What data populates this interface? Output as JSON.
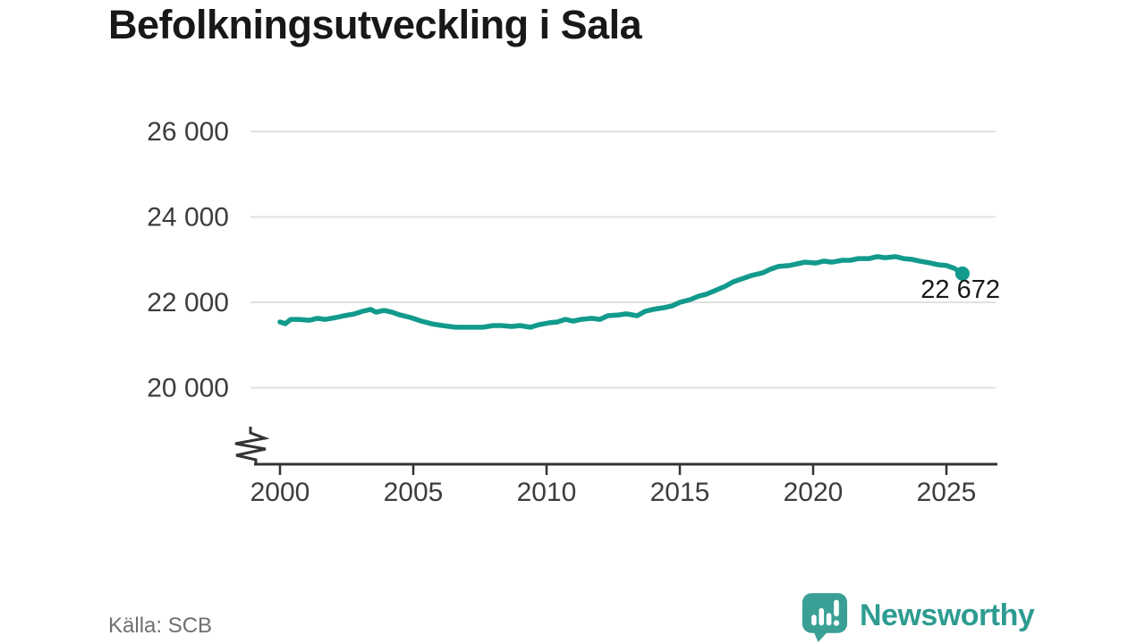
{
  "title": "Befolkningsutveckling i Sala",
  "source": "Källa: SCB",
  "logo": {
    "text": "Newsworthy",
    "icon": "newsworthy-speech-bubble-bar-chart-icon",
    "color": "#2e9c91"
  },
  "chart_data": {
    "type": "line",
    "title": "Befolkningsutveckling i Sala",
    "xlabel": "",
    "ylabel": "",
    "grid": "horizontal",
    "axis_break_at_bottom": true,
    "xlim": [
      1999,
      2027
    ],
    "ylim": [
      20000,
      26000
    ],
    "line_color": "#129a8c",
    "end_label": "22 672",
    "end_value": 22672,
    "yticks": [
      {
        "value": 20000,
        "label": "20 000"
      },
      {
        "value": 22000,
        "label": "22 000"
      },
      {
        "value": 24000,
        "label": "24 000"
      },
      {
        "value": 26000,
        "label": "26 000"
      }
    ],
    "xticks": [
      {
        "value": 2000,
        "label": "2000"
      },
      {
        "value": 2005,
        "label": "2005"
      },
      {
        "value": 2010,
        "label": "2010"
      },
      {
        "value": 2015,
        "label": "2015"
      },
      {
        "value": 2020,
        "label": "2020"
      },
      {
        "value": 2025,
        "label": "2025"
      }
    ],
    "points": [
      [
        2000.0,
        21540
      ],
      [
        2000.2,
        21500
      ],
      [
        2000.4,
        21600
      ],
      [
        2000.7,
        21600
      ],
      [
        2001.1,
        21580
      ],
      [
        2001.4,
        21625
      ],
      [
        2001.7,
        21600
      ],
      [
        2002.1,
        21645
      ],
      [
        2002.4,
        21685
      ],
      [
        2002.8,
        21730
      ],
      [
        2003.1,
        21790
      ],
      [
        2003.4,
        21835
      ],
      [
        2003.6,
        21770
      ],
      [
        2003.9,
        21810
      ],
      [
        2004.2,
        21770
      ],
      [
        2004.5,
        21705
      ],
      [
        2004.9,
        21645
      ],
      [
        2005.3,
        21560
      ],
      [
        2005.7,
        21495
      ],
      [
        2006.1,
        21455
      ],
      [
        2006.6,
        21415
      ],
      [
        2007.1,
        21415
      ],
      [
        2007.6,
        21415
      ],
      [
        2008.0,
        21455
      ],
      [
        2008.3,
        21455
      ],
      [
        2008.7,
        21435
      ],
      [
        2009.0,
        21455
      ],
      [
        2009.4,
        21415
      ],
      [
        2009.7,
        21475
      ],
      [
        2010.1,
        21520
      ],
      [
        2010.4,
        21540
      ],
      [
        2010.7,
        21600
      ],
      [
        2011.0,
        21560
      ],
      [
        2011.3,
        21600
      ],
      [
        2011.7,
        21625
      ],
      [
        2012.0,
        21600
      ],
      [
        2012.3,
        21685
      ],
      [
        2012.7,
        21705
      ],
      [
        2013.0,
        21730
      ],
      [
        2013.4,
        21685
      ],
      [
        2013.7,
        21790
      ],
      [
        2014.0,
        21835
      ],
      [
        2014.4,
        21875
      ],
      [
        2014.7,
        21915
      ],
      [
        2015.0,
        22000
      ],
      [
        2015.4,
        22065
      ],
      [
        2015.7,
        22145
      ],
      [
        2016.0,
        22190
      ],
      [
        2016.4,
        22295
      ],
      [
        2016.7,
        22375
      ],
      [
        2017.0,
        22480
      ],
      [
        2017.4,
        22565
      ],
      [
        2017.7,
        22630
      ],
      [
        2018.1,
        22690
      ],
      [
        2018.4,
        22775
      ],
      [
        2018.7,
        22840
      ],
      [
        2019.1,
        22860
      ],
      [
        2019.4,
        22900
      ],
      [
        2019.7,
        22940
      ],
      [
        2020.1,
        22920
      ],
      [
        2020.4,
        22965
      ],
      [
        2020.7,
        22940
      ],
      [
        2021.1,
        22985
      ],
      [
        2021.4,
        22985
      ],
      [
        2021.7,
        23025
      ],
      [
        2022.1,
        23025
      ],
      [
        2022.4,
        23070
      ],
      [
        2022.7,
        23045
      ],
      [
        2023.1,
        23070
      ],
      [
        2023.4,
        23025
      ],
      [
        2023.7,
        23005
      ],
      [
        2024.0,
        22965
      ],
      [
        2024.4,
        22920
      ],
      [
        2024.7,
        22880
      ],
      [
        2025.0,
        22860
      ],
      [
        2025.3,
        22795
      ],
      [
        2025.6,
        22672
      ]
    ]
  }
}
